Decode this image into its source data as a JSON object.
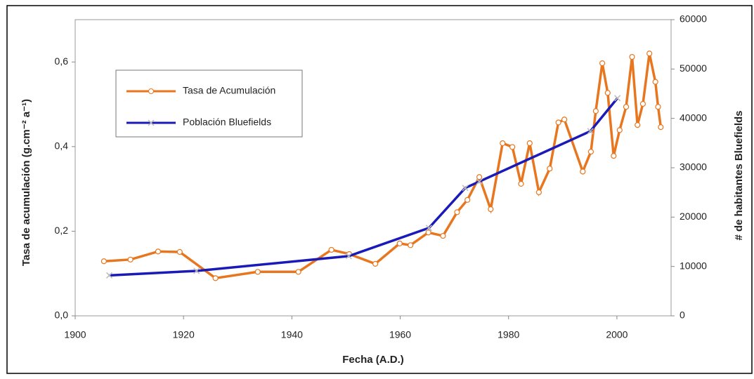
{
  "chart_data": {
    "type": "line",
    "xlabel": "Fecha (A.D.)",
    "ylabel": "Tasa de acumulación (g.cm⁻² a⁻¹)",
    "y2label": "# de habitantes Bluefields",
    "xlim": [
      1900,
      2010
    ],
    "xticks": [
      1900,
      1920,
      1940,
      1960,
      1980,
      2000
    ],
    "ylim": [
      0,
      0.7
    ],
    "yticks": [
      {
        "value": 0,
        "label": "0,0"
      },
      {
        "value": 0.2,
        "label": "0,2"
      },
      {
        "value": 0.4,
        "label": "0,4"
      },
      {
        "value": 0.6,
        "label": "0,6"
      }
    ],
    "y2lim": [
      0,
      60000
    ],
    "y2ticks": [
      0,
      10000,
      20000,
      30000,
      40000,
      50000,
      60000
    ],
    "legend": "upper left",
    "series": [
      {
        "name": "Tasa de Acumulación",
        "color": "#e8761e",
        "marker": "circle",
        "x": [
          1905.3,
          1910.2,
          1915.3,
          1919.3,
          1925.9,
          1933.7,
          1941.2,
          1947.3,
          1950.6,
          1955.4,
          1959.9,
          1961.9,
          1965.2,
          1967.9,
          1970.5,
          1972.4,
          1974.6,
          1976.7,
          1978.9,
          1980.7,
          1982.3,
          1983.9,
          1985.6,
          1987.6,
          1989.2,
          1990.3,
          1993.7,
          1995.2,
          1996.1,
          1997.3,
          1998.3,
          1999.4,
          2000.5,
          2001.7,
          2002.8,
          2003.8,
          2004.8,
          2006.0,
          2007.1,
          2007.6,
          2008.1
        ],
        "values": [
          0.129,
          0.133,
          0.152,
          0.151,
          0.089,
          0.104,
          0.104,
          0.156,
          0.146,
          0.123,
          0.171,
          0.167,
          0.197,
          0.189,
          0.245,
          0.274,
          0.328,
          0.252,
          0.408,
          0.399,
          0.312,
          0.408,
          0.292,
          0.348,
          0.457,
          0.464,
          0.341,
          0.388,
          0.484,
          0.597,
          0.527,
          0.378,
          0.439,
          0.494,
          0.612,
          0.451,
          0.501,
          0.62,
          0.553,
          0.494,
          0.446
        ]
      },
      {
        "name": "Población Bluefields",
        "color": "#1a1ab8",
        "marker": "x",
        "axis": "y2",
        "x": [
          1906.3,
          1922.4,
          1950.5,
          1965.3,
          1972.0,
          1974.6,
          1995.1,
          2000.1
        ],
        "values": [
          8200,
          9100,
          12100,
          17800,
          25900,
          27200,
          37400,
          44100
        ]
      }
    ]
  }
}
